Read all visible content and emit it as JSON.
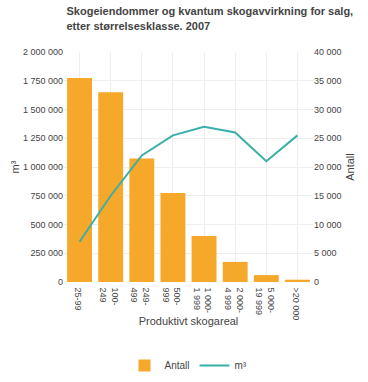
{
  "chart_data": {
    "type": "bar",
    "title": "Skogeiendommer og kvantum skogavvirkning for salg,",
    "subtitle": "etter størrelsesklasse. 2007",
    "categories": [
      "25-99",
      "100-\n249",
      "249-\n499",
      "500-\n999",
      "1 000-\n1 999",
      "2 000-\n4 999",
      "5 000-\n19 999",
      ">20 000"
    ],
    "series": [
      {
        "name": "Antall",
        "type": "bar",
        "axis": "y2",
        "color": "#F5A82A",
        "values": [
          35500,
          33000,
          21500,
          15500,
          8000,
          3500,
          1200,
          400
        ]
      },
      {
        "name": "m³",
        "type": "line",
        "color": "#3AAFA9",
        "values": [
          350000,
          750000,
          1100000,
          1275000,
          1350000,
          1300000,
          1050000,
          1275000
        ]
      }
    ],
    "xlabel": "Produktivt skogareal",
    "ylabel": "m³",
    "y2label": "Antall",
    "ylim": [
      0,
      2000000
    ],
    "yticks": [
      0,
      {
        "value": 250000,
        "label": "250 000"
      },
      {
        "value": 500000,
        "label": "500 000"
      },
      {
        "value": 750000,
        "label": "750 000"
      },
      {
        "value": 1000000,
        "label": "1 000 000"
      },
      {
        "value": 1250000,
        "label": "1 250 000"
      },
      {
        "value": 1500000,
        "label": "1 500 000"
      },
      {
        "value": 1750000,
        "label": "1 750 000"
      },
      {
        "value": 2000000,
        "label": "2 000 000"
      }
    ],
    "y2lim": [
      0,
      40000
    ],
    "y2ticks": [
      0,
      {
        "value": 5000,
        "label": "5 000"
      },
      {
        "value": 10000,
        "label": "10 000"
      },
      {
        "value": 15000,
        "label": "15 000"
      },
      {
        "value": 20000,
        "label": "20 000"
      },
      {
        "value": 25000,
        "label": "25 000"
      },
      {
        "value": 30000,
        "label": "30 000"
      },
      {
        "value": 35000,
        "label": "35 000"
      },
      {
        "value": 40000,
        "label": "40 000"
      }
    ],
    "grid": true,
    "legend": "bottom"
  }
}
